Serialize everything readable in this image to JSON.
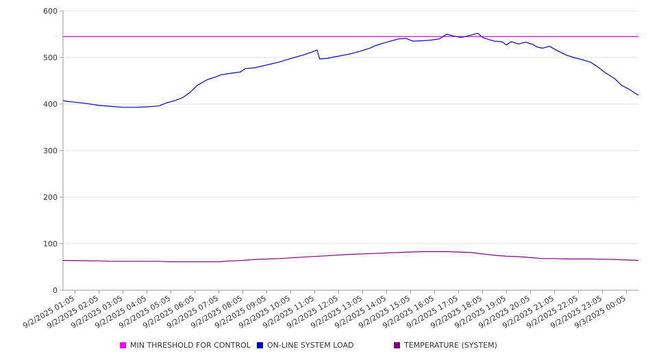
{
  "chart_data": {
    "type": "line",
    "title": "",
    "xlabel": "",
    "ylabel": "",
    "ylim": [
      0,
      600
    ],
    "y_ticks": [
      0,
      100,
      200,
      300,
      400,
      500,
      600
    ],
    "grid": true,
    "legend_position": "bottom",
    "x_tick_labels": [
      "9/2/2025 01:05",
      "9/2/2025 02:05",
      "9/2/2025 03:05",
      "9/2/2025 04:05",
      "9/2/2025 05:05",
      "9/2/2025 06:05",
      "9/2/2025 07:05",
      "9/2/2025 08:05",
      "9/2/2025 09:05",
      "9/2/2025 10:05",
      "9/2/2025 11:05",
      "9/2/2025 12:05",
      "9/2/2025 13:05",
      "9/2/2025 14:05",
      "9/2/2025 15:05",
      "9/2/2025 16:05",
      "9/2/2025 17:05",
      "9/2/2025 18:05",
      "9/2/2025 19:05",
      "9/2/2025 20:05",
      "9/2/2025 21:05",
      "9/2/2025 22:05",
      "9/2/2025 23:05",
      "9/3/2025 00:05"
    ],
    "x_range_hours": [
      0,
      24
    ],
    "series": [
      {
        "name": "MIN THRESHOLD FOR CONTROL",
        "color": "#ff00ff",
        "points": [
          [
            0,
            545
          ],
          [
            24,
            545
          ]
        ]
      },
      {
        "name": "ON-LINE SYSTEM LOAD",
        "color": "#0000cc",
        "points": [
          [
            0,
            408
          ],
          [
            0.1,
            406
          ],
          [
            0.5,
            404
          ],
          [
            1,
            401
          ],
          [
            1.5,
            397
          ],
          [
            2,
            395
          ],
          [
            2.5,
            393
          ],
          [
            3,
            393
          ],
          [
            3.5,
            394
          ],
          [
            4,
            396
          ],
          [
            4.3,
            402
          ],
          [
            4.7,
            408
          ],
          [
            5,
            414
          ],
          [
            5.3,
            425
          ],
          [
            5.6,
            440
          ],
          [
            6,
            452
          ],
          [
            6.3,
            457
          ],
          [
            6.6,
            463
          ],
          [
            7,
            466
          ],
          [
            7.4,
            469
          ],
          [
            7.6,
            476
          ],
          [
            8,
            478
          ],
          [
            8.5,
            484
          ],
          [
            9,
            490
          ],
          [
            9.5,
            498
          ],
          [
            10,
            505
          ],
          [
            10.4,
            512
          ],
          [
            10.6,
            516
          ],
          [
            10.7,
            497
          ],
          [
            11,
            498
          ],
          [
            11.5,
            503
          ],
          [
            12,
            508
          ],
          [
            12.3,
            512
          ],
          [
            12.8,
            520
          ],
          [
            13,
            525
          ],
          [
            13.5,
            533
          ],
          [
            14,
            540
          ],
          [
            14.3,
            541
          ],
          [
            14.6,
            535
          ],
          [
            15,
            536
          ],
          [
            15.3,
            537
          ],
          [
            15.7,
            540
          ],
          [
            16,
            550
          ],
          [
            16.3,
            546
          ],
          [
            16.6,
            543
          ],
          [
            17,
            548
          ],
          [
            17.3,
            552
          ],
          [
            17.5,
            543
          ],
          [
            17.8,
            538
          ],
          [
            18,
            535
          ],
          [
            18.3,
            534
          ],
          [
            18.5,
            527
          ],
          [
            18.7,
            534
          ],
          [
            19,
            529
          ],
          [
            19.3,
            533
          ],
          [
            19.6,
            528
          ],
          [
            19.8,
            522
          ],
          [
            20,
            520
          ],
          [
            20.3,
            524
          ],
          [
            20.5,
            518
          ],
          [
            20.8,
            510
          ],
          [
            21,
            505
          ],
          [
            21.3,
            500
          ],
          [
            21.6,
            496
          ],
          [
            22,
            490
          ],
          [
            22.3,
            480
          ],
          [
            22.6,
            468
          ],
          [
            23,
            455
          ],
          [
            23.3,
            440
          ],
          [
            23.6,
            432
          ],
          [
            24,
            419
          ]
        ]
      },
      {
        "name": "TEMPERATURE (SYSTEM)",
        "color": "#800080",
        "points": [
          [
            0,
            64
          ],
          [
            1.5,
            63
          ],
          [
            2,
            62
          ],
          [
            3,
            62
          ],
          [
            4,
            62
          ],
          [
            4.5,
            61
          ],
          [
            5,
            61
          ],
          [
            5.5,
            61
          ],
          [
            6,
            61
          ],
          [
            6.5,
            61
          ],
          [
            7,
            63
          ],
          [
            7.5,
            64
          ],
          [
            8,
            66
          ],
          [
            9,
            68
          ],
          [
            10,
            71
          ],
          [
            11,
            74
          ],
          [
            12,
            77
          ],
          [
            13,
            79
          ],
          [
            14,
            81
          ],
          [
            15,
            83
          ],
          [
            16,
            83
          ],
          [
            17,
            81
          ],
          [
            17.5,
            78
          ],
          [
            18,
            75
          ],
          [
            18.5,
            73
          ],
          [
            19,
            72
          ],
          [
            19.5,
            70
          ],
          [
            20,
            68
          ],
          [
            20.5,
            68
          ],
          [
            21,
            67
          ],
          [
            22,
            67
          ],
          [
            23,
            66
          ],
          [
            24,
            64
          ]
        ]
      }
    ]
  }
}
